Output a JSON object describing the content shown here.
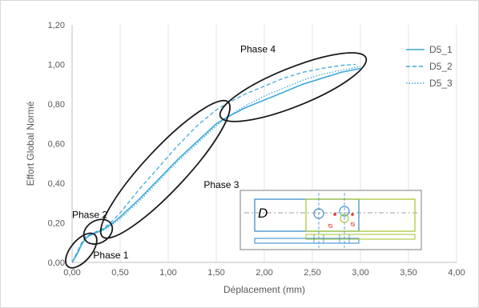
{
  "chart_data": {
    "type": "line",
    "title": "",
    "xlabel": "Déplacement (mm)",
    "ylabel": "Effort Global Normé",
    "xlim": [
      0,
      4
    ],
    "ylim": [
      0,
      1.2
    ],
    "x_ticks": [
      "0,00",
      "0,50",
      "1,00",
      "1,50",
      "2,00",
      "2,50",
      "3,00",
      "3,50",
      "4,00"
    ],
    "y_ticks": [
      "0,00",
      "0,20",
      "0,40",
      "0,60",
      "0,80",
      "1,00",
      "1,20"
    ],
    "grid": "vertical",
    "legend_position": "top-right",
    "series": [
      {
        "name": "D5_1",
        "style": "solid",
        "color": "#3fa9dc",
        "x": [
          0.0,
          0.05,
          0.1,
          0.14,
          0.18,
          0.25,
          0.32,
          0.4,
          0.5,
          0.7,
          0.9,
          1.1,
          1.3,
          1.5,
          1.6,
          1.8,
          2.0,
          2.2,
          2.4,
          2.6,
          2.8,
          3.0
        ],
        "y": [
          0.0,
          0.04,
          0.09,
          0.12,
          0.135,
          0.15,
          0.165,
          0.19,
          0.23,
          0.32,
          0.42,
          0.52,
          0.61,
          0.7,
          0.73,
          0.78,
          0.82,
          0.86,
          0.9,
          0.93,
          0.96,
          0.98
        ]
      },
      {
        "name": "D5_2",
        "style": "dashed",
        "color": "#3fa9dc",
        "x": [
          0.0,
          0.05,
          0.1,
          0.14,
          0.18,
          0.25,
          0.32,
          0.4,
          0.5,
          0.7,
          0.9,
          1.1,
          1.3,
          1.5,
          1.6,
          1.8,
          2.0,
          2.2,
          2.4,
          2.6,
          2.8,
          2.95
        ],
        "y": [
          0.0,
          0.05,
          0.1,
          0.13,
          0.14,
          0.155,
          0.17,
          0.2,
          0.25,
          0.37,
          0.48,
          0.59,
          0.69,
          0.77,
          0.8,
          0.85,
          0.89,
          0.93,
          0.96,
          0.98,
          0.995,
          1.0
        ]
      },
      {
        "name": "D5_3",
        "style": "dotted",
        "color": "#3fa9dc",
        "x": [
          0.0,
          0.05,
          0.1,
          0.14,
          0.18,
          0.25,
          0.32,
          0.4,
          0.5,
          0.7,
          0.9,
          1.1,
          1.3,
          1.5,
          1.6,
          1.8,
          2.0,
          2.2,
          2.4,
          2.6,
          2.8,
          3.0
        ],
        "y": [
          0.0,
          0.045,
          0.095,
          0.125,
          0.14,
          0.15,
          0.16,
          0.185,
          0.22,
          0.31,
          0.41,
          0.51,
          0.6,
          0.69,
          0.73,
          0.79,
          0.84,
          0.88,
          0.92,
          0.95,
          0.97,
          0.99
        ]
      }
    ],
    "annotations": [
      {
        "label": "Phase 1",
        "ellipse": {
          "cx": 0.09,
          "cy": 0.065,
          "rx_axis": [
            -0.07,
            0.25
          ],
          "ry_axis": [
            -0.03,
            0.16
          ],
          "angle_deg": -45
        },
        "text_at": [
          0.2,
          0.03
        ]
      },
      {
        "label": "Phase 2",
        "ellipse": {
          "cx": 0.27,
          "cy": 0.155,
          "rx_axis": [
            -0.04,
            0.14
          ],
          "ry_axis": [
            -0.01,
            0.06
          ],
          "angle_deg": -40
        },
        "text_at": [
          0.0,
          0.23
        ]
      },
      {
        "label": "Phase 3",
        "ellipse": {
          "cx": 0.97,
          "cy": 0.47
        },
        "text_at": [
          1.37,
          0.39
        ]
      },
      {
        "label": "Phase 4",
        "ellipse": {
          "cx": 2.3,
          "cy": 0.885
        },
        "text_at": [
          1.75,
          1.07
        ]
      }
    ]
  },
  "inset": {
    "label": "D",
    "dim_label_1": "Ø",
    "dim_label_2": "Ø",
    "outline_color": "#3f8fd0",
    "accent_color": "#a9c93a",
    "marker_color": "#e03030"
  }
}
